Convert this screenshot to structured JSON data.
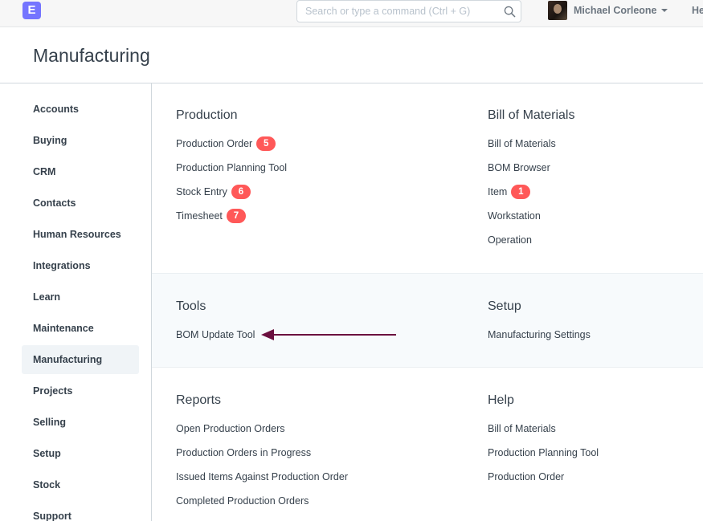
{
  "navbar": {
    "logo": "E",
    "search_placeholder": "Search or type a command (Ctrl + G)",
    "search_icon": "search-icon",
    "user_name": "Michael Corleone",
    "help_label": "Help"
  },
  "page": {
    "title": "Manufacturing"
  },
  "sidebar": {
    "items": [
      {
        "label": "Accounts"
      },
      {
        "label": "Buying"
      },
      {
        "label": "CRM"
      },
      {
        "label": "Contacts"
      },
      {
        "label": "Human Resources"
      },
      {
        "label": "Integrations"
      },
      {
        "label": "Learn"
      },
      {
        "label": "Maintenance"
      },
      {
        "label": "Manufacturing",
        "active": true
      },
      {
        "label": "Projects"
      },
      {
        "label": "Selling"
      },
      {
        "label": "Setup"
      },
      {
        "label": "Stock"
      },
      {
        "label": "Support"
      }
    ]
  },
  "sections": {
    "production": {
      "title": "Production",
      "links": [
        {
          "label": "Production Order",
          "badge": "5"
        },
        {
          "label": "Production Planning Tool"
        },
        {
          "label": "Stock Entry",
          "badge": "6"
        },
        {
          "label": "Timesheet",
          "badge": "7"
        }
      ]
    },
    "bom": {
      "title": "Bill of Materials",
      "links": [
        {
          "label": "Bill of Materials"
        },
        {
          "label": "BOM Browser"
        },
        {
          "label": "Item",
          "badge": "1"
        },
        {
          "label": "Workstation"
        },
        {
          "label": "Operation"
        }
      ]
    },
    "tools": {
      "title": "Tools",
      "links": [
        {
          "label": "BOM Update Tool"
        }
      ]
    },
    "setup": {
      "title": "Setup",
      "links": [
        {
          "label": "Manufacturing Settings"
        }
      ]
    },
    "reports": {
      "title": "Reports",
      "links": [
        {
          "label": "Open Production Orders"
        },
        {
          "label": "Production Orders in Progress"
        },
        {
          "label": "Issued Items Against Production Order"
        },
        {
          "label": "Completed Production Orders"
        }
      ]
    },
    "help": {
      "title": "Help",
      "links": [
        {
          "label": "Bill of Materials"
        },
        {
          "label": "Production Planning Tool"
        },
        {
          "label": "Production Order"
        }
      ]
    }
  },
  "colors": {
    "accent": "#7575ff",
    "badge": "#ff5858",
    "annotation_arrow": "#6b0f3f"
  }
}
